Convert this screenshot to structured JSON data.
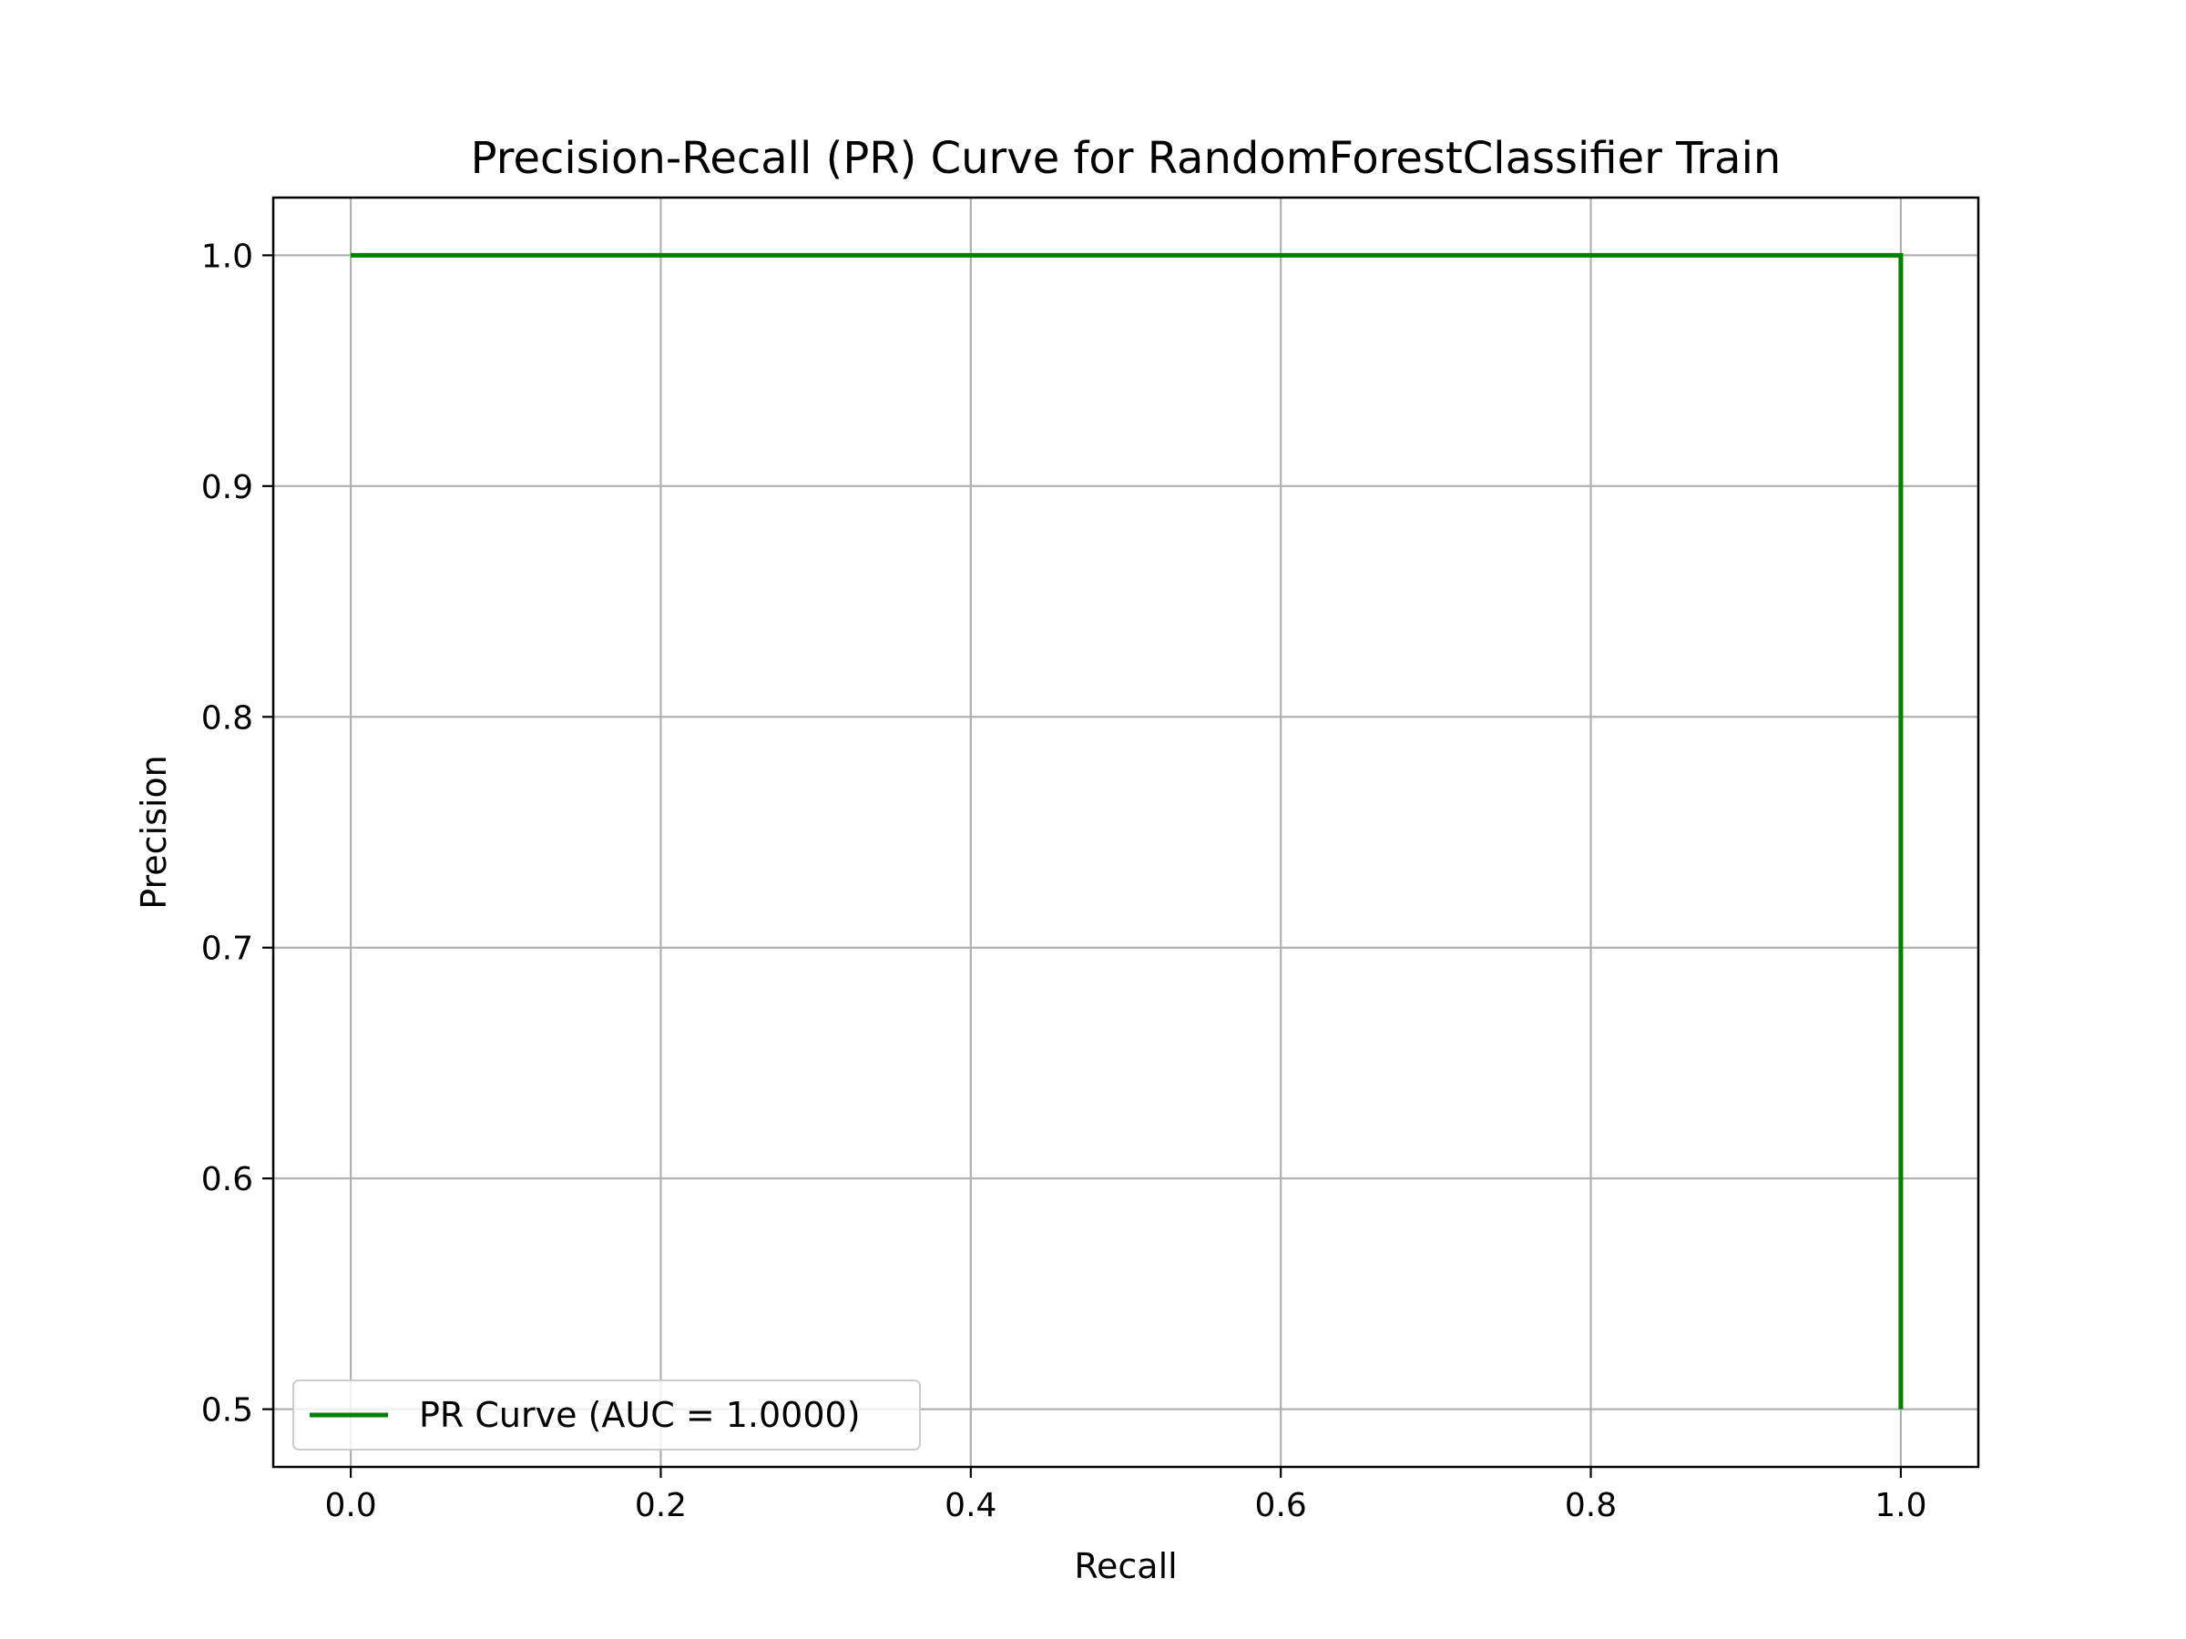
{
  "chart_data": {
    "type": "line",
    "title": "Precision-Recall (PR) Curve for RandomForestClassifier Train",
    "xlabel": "Recall",
    "ylabel": "Precision",
    "xlim": [
      -0.05,
      1.05
    ],
    "ylim": [
      0.475,
      1.025
    ],
    "xticks": [
      0.0,
      0.2,
      0.4,
      0.6,
      0.8,
      1.0
    ],
    "xtick_labels": [
      "0.0",
      "0.2",
      "0.4",
      "0.6",
      "0.8",
      "1.0"
    ],
    "yticks": [
      0.5,
      0.6,
      0.7,
      0.8,
      0.9,
      1.0
    ],
    "ytick_labels": [
      "0.5",
      "0.6",
      "0.7",
      "0.8",
      "0.9",
      "1.0"
    ],
    "grid": true,
    "legend_position": "lower-left",
    "series": [
      {
        "name": "PR Curve (AUC = 1.0000)",
        "color": "#008000",
        "x": [
          0.0,
          1.0,
          1.0
        ],
        "y": [
          1.0,
          1.0,
          0.5
        ]
      }
    ]
  }
}
